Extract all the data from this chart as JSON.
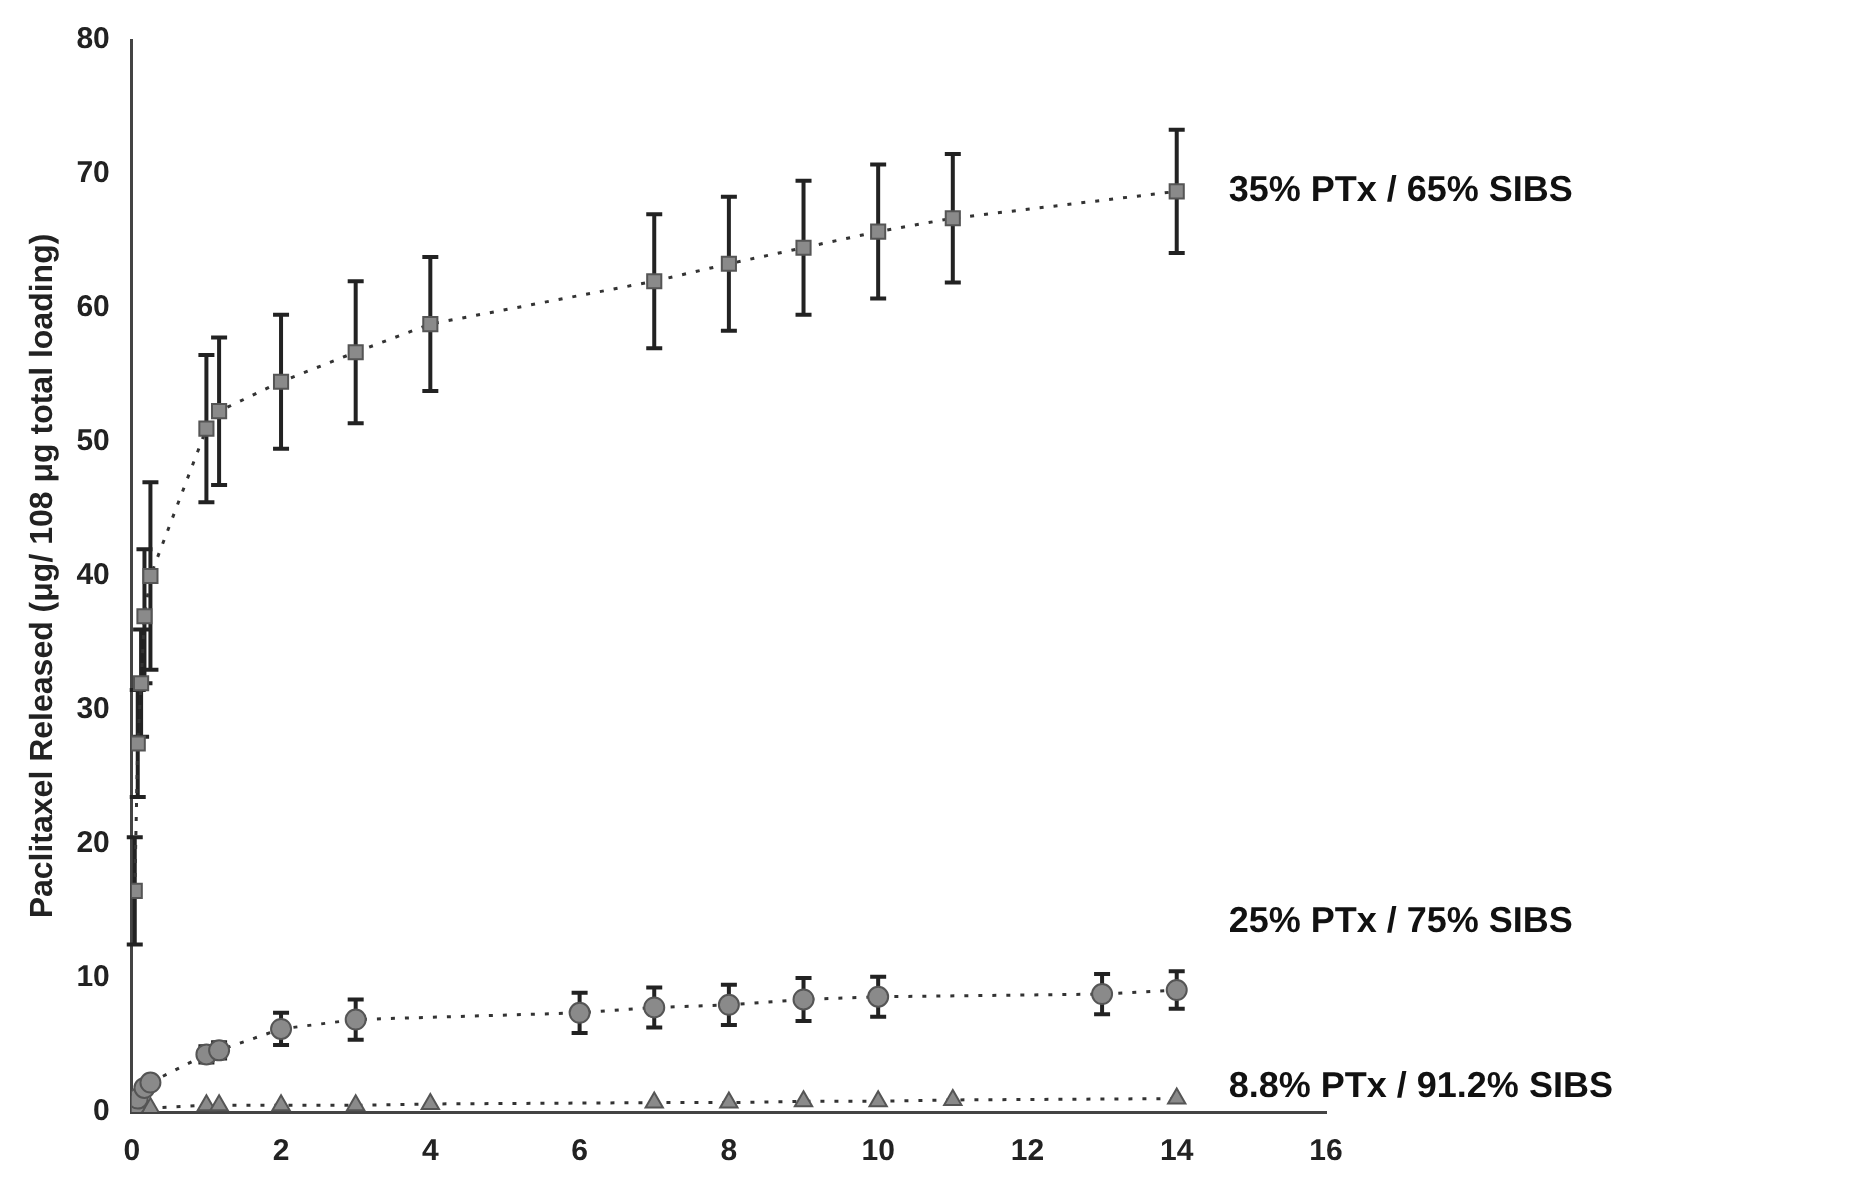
{
  "chart_data": {
    "type": "line",
    "ylabel": "Paclitaxel Released (μg/ 108 μg total loading)",
    "xlim": [
      0,
      16
    ],
    "xticks": [
      0,
      2,
      4,
      6,
      8,
      10,
      12,
      14,
      16
    ],
    "ylim": [
      0,
      80
    ],
    "yticks": [
      0,
      10,
      20,
      30,
      40,
      50,
      60,
      70,
      80
    ],
    "grid": false,
    "legend": false,
    "line_style": "dotted",
    "series": [
      {
        "name": "35% PTx / 65% SIBS",
        "color": "#8a8a8a",
        "marker": "square",
        "x": [
          0.04,
          0.08,
          0.125,
          0.17,
          0.25,
          1,
          1.17,
          2,
          3,
          4,
          7,
          8,
          9,
          10,
          11,
          14
        ],
        "values": [
          16.5,
          27.5,
          32,
          37,
          40,
          51,
          52.3,
          54.5,
          56.7,
          58.8,
          62,
          63.3,
          64.5,
          65.7,
          66.7,
          68.7
        ],
        "errors": [
          4,
          4,
          4,
          5,
          7,
          5.5,
          5.5,
          5,
          5.3,
          5,
          5,
          5,
          5,
          5,
          4.8,
          4.6
        ]
      },
      {
        "name": "25% PTx / 75% SIBS",
        "color": "#8a8a8a",
        "marker": "circle",
        "x": [
          0.04,
          0.08,
          0.17,
          0.25,
          1,
          1.17,
          2,
          3,
          6,
          7,
          8,
          9,
          10,
          13,
          14
        ],
        "values": [
          0.5,
          1,
          1.8,
          2.2,
          4.3,
          4.6,
          6.2,
          6.9,
          7.4,
          7.8,
          8,
          8.4,
          8.6,
          8.8,
          9.1
        ],
        "errors": [
          null,
          null,
          null,
          null,
          0.6,
          0.6,
          1.2,
          1.5,
          1.5,
          1.5,
          1.5,
          1.6,
          1.5,
          1.5,
          1.4
        ]
      },
      {
        "name": "8.8% PTx / 91.2% SIBS",
        "color": "#8a8a8a",
        "marker": "triangle",
        "x": [
          0.04,
          0.25,
          1,
          1.17,
          2,
          3,
          4,
          7,
          8,
          9,
          10,
          11,
          14
        ],
        "values": [
          0.1,
          0.3,
          0.5,
          0.5,
          0.5,
          0.5,
          0.6,
          0.7,
          0.7,
          0.8,
          0.8,
          0.9,
          1.0
        ]
      }
    ]
  }
}
